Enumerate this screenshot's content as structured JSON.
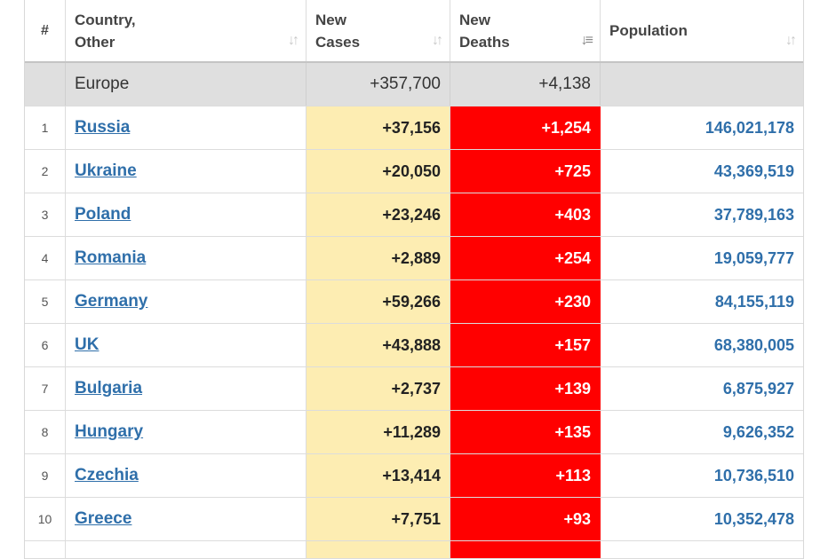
{
  "header": {
    "num": "#",
    "country_line1": "Country,",
    "country_line2": "Other",
    "cases_line1": "New",
    "cases_line2": "Cases",
    "deaths_line1": "New",
    "deaths_line2": "Deaths",
    "population": "Population",
    "sort_icon": "sort-arrows-icon",
    "sort_active_icon": "sort-descending-icon"
  },
  "region": {
    "name": "Europe",
    "new_cases": "+357,700",
    "new_deaths": "+4,138",
    "population": ""
  },
  "rows": [
    {
      "rank": "1",
      "country": "Russia",
      "new_cases": "+37,156",
      "new_deaths": "+1,254",
      "population": "146,021,178"
    },
    {
      "rank": "2",
      "country": "Ukraine",
      "new_cases": "+20,050",
      "new_deaths": "+725",
      "population": "43,369,519"
    },
    {
      "rank": "3",
      "country": "Poland",
      "new_cases": "+23,246",
      "new_deaths": "+403",
      "population": "37,789,163"
    },
    {
      "rank": "4",
      "country": "Romania",
      "new_cases": "+2,889",
      "new_deaths": "+254",
      "population": "19,059,777"
    },
    {
      "rank": "5",
      "country": "Germany",
      "new_cases": "+59,266",
      "new_deaths": "+230",
      "population": "84,155,119"
    },
    {
      "rank": "6",
      "country": "UK",
      "new_cases": "+43,888",
      "new_deaths": "+157",
      "population": "68,380,005"
    },
    {
      "rank": "7",
      "country": "Bulgaria",
      "new_cases": "+2,737",
      "new_deaths": "+139",
      "population": "6,875,927"
    },
    {
      "rank": "8",
      "country": "Hungary",
      "new_cases": "+11,289",
      "new_deaths": "+135",
      "population": "9,626,352"
    },
    {
      "rank": "9",
      "country": "Czechia",
      "new_cases": "+13,414",
      "new_deaths": "+113",
      "population": "10,736,510"
    },
    {
      "rank": "10",
      "country": "Greece",
      "new_cases": "+7,751",
      "new_deaths": "+93",
      "population": "10,352,478"
    }
  ],
  "colors": {
    "new_cases_bg": "#fdedb2",
    "new_deaths_bg": "#ff0000",
    "link": "#2f6faa",
    "region_bg": "#dfdfdf"
  }
}
